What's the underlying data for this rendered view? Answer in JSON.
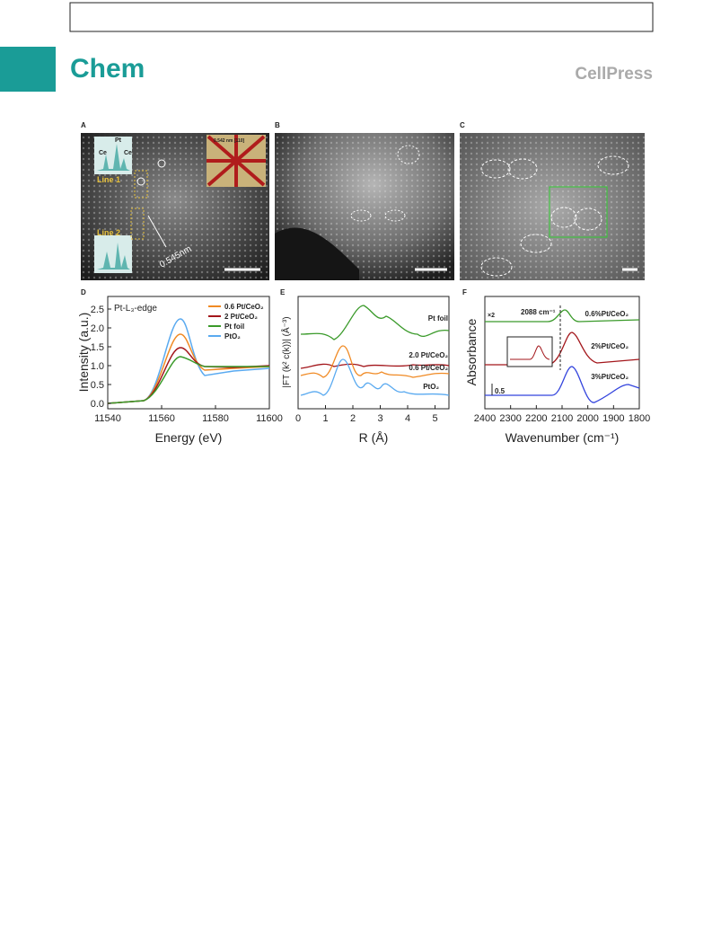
{
  "header": {
    "journal": "Chem",
    "publisher": "CellPress"
  },
  "figure": {
    "panel_a": {
      "label": "A",
      "inset_peaks": [
        "Pt",
        "Ce",
        "Ce"
      ],
      "line1": "Line 1",
      "line2": "Line 2",
      "distance": "0.545nm",
      "inset_caption": "0.542 nm [110]"
    },
    "panel_b": {
      "label": "B"
    },
    "panel_c": {
      "label": "C"
    },
    "panel_d": {
      "label": "D",
      "note": "Pt-L₃-edge",
      "ylabel": "Intensity (a.u.)",
      "xlabel": "Energy (eV)",
      "yticks": [
        "0.0",
        "0.5",
        "1.0",
        "1.5",
        "2.0",
        "2.5"
      ],
      "xticks": [
        "11540",
        "11560",
        "11580",
        "11600"
      ],
      "legend": [
        {
          "name": "0.6 Pt/CeO₂",
          "color": "#f08a24"
        },
        {
          "name": "2 Pt/CeO₂",
          "color": "#a3161b"
        },
        {
          "name": "Pt foil",
          "color": "#3a9a2a"
        },
        {
          "name": "PtO₂",
          "color": "#5aaaf0"
        }
      ]
    },
    "panel_e": {
      "label": "E",
      "ylabel": "|FT (k² c(k))| (Å⁻³)",
      "xlabel": "R (Å)",
      "xticks": [
        "0",
        "1",
        "2",
        "3",
        "4",
        "5"
      ],
      "curves": [
        "Pt foil",
        "2.0 Pt/CeO₂",
        "0.6 Pt/CeO₂",
        "PtO₂"
      ]
    },
    "panel_f": {
      "label": "F",
      "ylabel": "Absorbance",
      "xlabel": "Wavenumber (cm⁻¹)",
      "xticks": [
        "2400",
        "2300",
        "2200",
        "2100",
        "2000",
        "1900",
        "1800"
      ],
      "peak": "2088 cm⁻¹",
      "curves": [
        "0.6%Pt/CeO₂",
        "2%Pt/CeO₂",
        "3%Pt/CeO₂"
      ],
      "scale": "0.5",
      "factor": "×2"
    }
  }
}
